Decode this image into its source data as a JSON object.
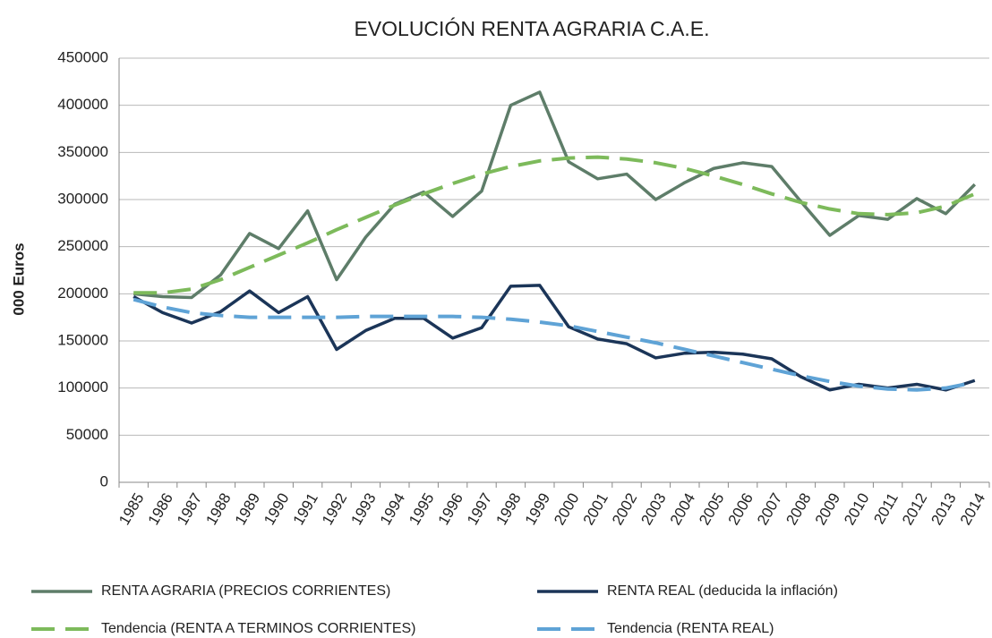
{
  "chart_data": {
    "type": "line",
    "title": "EVOLUCIÓN RENTA AGRARIA C.A.E.",
    "y_label": "000 Euros",
    "categories": [
      "1985",
      "1986",
      "1987",
      "1988",
      "1989",
      "1990",
      "1991",
      "1992",
      "1993",
      "1994",
      "1995",
      "1996",
      "1997",
      "1998",
      "1999",
      "2000",
      "2001",
      "2002",
      "2003",
      "2004",
      "2005",
      "2006",
      "2007",
      "2008",
      "2009",
      "2010",
      "2011",
      "2012",
      "2013",
      "2014"
    ],
    "series": [
      {
        "name": "RENTA AGRARIA (PRECIOS CORRIENTES)",
        "color": "#5e7d69",
        "dashed": false,
        "values": [
          200000,
          197000,
          196000,
          220000,
          264000,
          248000,
          288000,
          215000,
          260000,
          295000,
          308000,
          282000,
          309000,
          400000,
          414000,
          340000,
          322000,
          327000,
          300000,
          318000,
          333000,
          339000,
          335000,
          298000,
          262000,
          283000,
          279000,
          301000,
          285000,
          316000
        ]
      },
      {
        "name": "RENTA REAL (deducida la inflación)",
        "color": "#1b3558",
        "dashed": false,
        "values": [
          197000,
          180000,
          169000,
          181000,
          203000,
          180000,
          197000,
          141000,
          161000,
          174000,
          174000,
          153000,
          164000,
          208000,
          209000,
          165000,
          152000,
          147000,
          132000,
          137000,
          138000,
          136000,
          131000,
          112000,
          98000,
          104000,
          100000,
          104000,
          98000,
          108000
        ]
      },
      {
        "name": "Tendencia (RENTA A TERMINOS CORRIENTES)",
        "color": "#7dba5b",
        "dashed": true,
        "values": [
          201000,
          201000,
          205000,
          215000,
          228000,
          241000,
          254000,
          268000,
          281000,
          294000,
          306000,
          317000,
          327000,
          335000,
          341000,
          344000,
          345000,
          343000,
          339000,
          333000,
          325000,
          316000,
          306000,
          297000,
          290000,
          285000,
          284000,
          286000,
          293000,
          306000
        ]
      },
      {
        "name": "Tendencia (RENTA REAL)",
        "color": "#5fa3d6",
        "dashed": true,
        "values": [
          194000,
          186000,
          180000,
          177000,
          175000,
          175000,
          175000,
          175000,
          176000,
          176000,
          176000,
          176000,
          175000,
          173000,
          170000,
          166000,
          160000,
          154000,
          148000,
          141000,
          134000,
          127000,
          120000,
          113000,
          107000,
          102000,
          99000,
          98000,
          100000,
          106000
        ]
      }
    ],
    "ylim": [
      0,
      450000
    ],
    "yticks": [
      0,
      50000,
      100000,
      150000,
      200000,
      250000,
      300000,
      350000,
      400000,
      450000
    ],
    "grid": true
  }
}
